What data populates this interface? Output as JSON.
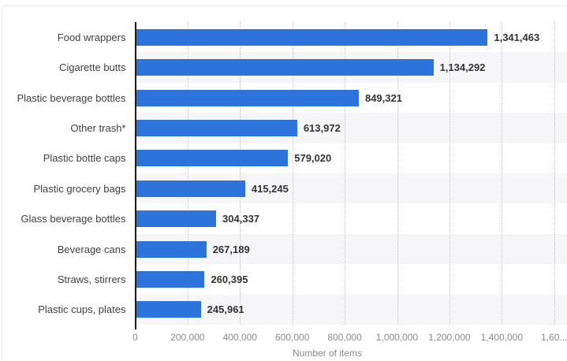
{
  "chart_data": {
    "type": "bar",
    "orientation": "horizontal",
    "title": "",
    "xlabel": "Number of items",
    "ylabel": "",
    "categories": [
      "Food wrappers",
      "Cigarette butts",
      "Plastic beverage bottles",
      "Other trash*",
      "Plastic bottle caps",
      "Plastic grocery bags",
      "Glass beverage bottles",
      "Beverage cans",
      "Straws, stirrers",
      "Plastic cups, plates"
    ],
    "values": [
      1341463,
      1134292,
      849321,
      613972,
      579020,
      415245,
      304337,
      267189,
      260395,
      245961
    ],
    "value_labels": [
      "1,341,463",
      "1,134,292",
      "849,321",
      "613,972",
      "579,020",
      "415,245",
      "304,337",
      "267,189",
      "260,395",
      "245,961"
    ],
    "x_ticks": [
      "0",
      "200,000",
      "400,000",
      "600,000",
      "800,000",
      "1,000,000",
      "1,200,000",
      "1,400,000",
      "1,60..."
    ],
    "xlim": [
      0,
      1600000
    ],
    "tick_step": 200000,
    "grid": "vertical-dotted",
    "legend": "none",
    "colors": {
      "bar": "#2c73dc",
      "band_alt": "#f6f6f8",
      "axis_line": "#1c1c1c",
      "gridline": "#c6c6c6",
      "category_text": "#404040",
      "value_text": "#333333",
      "tick_text": "#8a8a8a"
    }
  }
}
